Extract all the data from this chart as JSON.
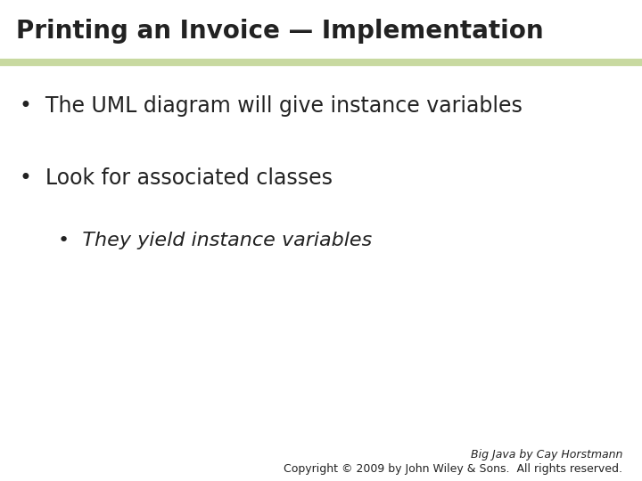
{
  "title": "Printing an Invoice — Implementation",
  "title_fontsize": 20,
  "title_color": "#222222",
  "title_bg_color": "#ffffff",
  "separator_color": "#c8d9a0",
  "bg_color": "#ffffff",
  "bullet1": "The UML diagram will give instance variables",
  "bullet2": "Look for associated classes",
  "bullet3": "They yield instance variables",
  "bullet_fontsize": 17,
  "sub_bullet_fontsize": 16,
  "copyright_line1": "Big Java by Cay Horstmann",
  "copyright_line2": "Copyright © 2009 by John Wiley & Sons.  All rights reserved.",
  "copyright_fontsize": 9,
  "title_bar_height": 0.13,
  "sep_linewidth": 6
}
